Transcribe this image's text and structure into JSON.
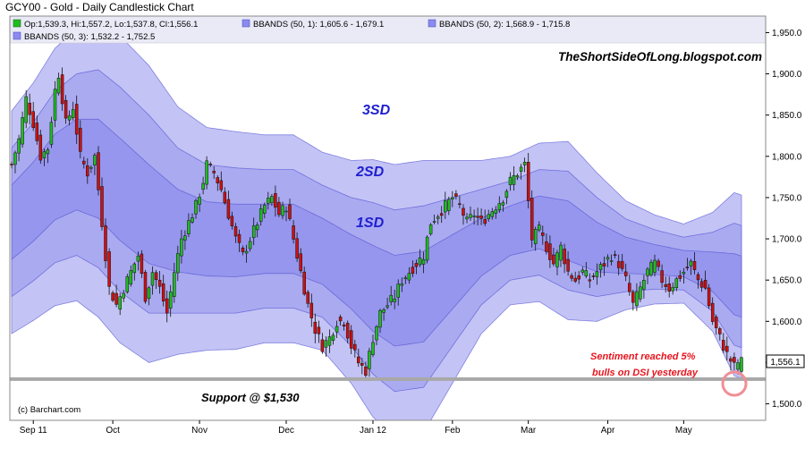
{
  "header": {
    "title": "GCY00 - Gold - Daily Candlestick Chart"
  },
  "legend": {
    "ohlc": "Op:1,539.3, Hi:1,557.2, Lo:1,537.8, Cl:1,556.1",
    "bb1": "BBANDS (50, 1): 1,605.6 - 1,679.1",
    "bb2": "BBANDS (50, 2): 1,568.9 - 1,715.8",
    "bb3": "BBANDS (50, 3): 1,532.2 - 1,752.5"
  },
  "watermark": "TheShortSideOfLong.blogspot.com",
  "copyright": "(c) Barchart.com",
  "annotations": {
    "band3": "3SD",
    "band2": "2SD",
    "band1": "1SD",
    "support": "Support @ $1,530",
    "sentiment_line1": "Sentiment reached 5%",
    "sentiment_line2": "bulls on DSI yesterday"
  },
  "price_tag": "1,556.1",
  "colors": {
    "up_candle": "#22bb22",
    "down_candle": "#cc1111",
    "band_fill": "#6f6fe8",
    "sentiment_text": "#e8141e",
    "band_label": "#1f1fd0",
    "support_line": "#a8a8a8",
    "circle": "#f08e95"
  },
  "chart_data": {
    "type": "candlestick",
    "title": "GCY00 - Gold - Daily Candlestick Chart",
    "ylim": [
      1480,
      1970
    ],
    "y_ticks": [
      "1,500.0",
      "1,550.0",
      "1,600.0",
      "1,650.0",
      "1,700.0",
      "1,750.0",
      "1,800.0",
      "1,850.0",
      "1,900.0",
      "1,950.0"
    ],
    "y_tick_values": [
      1500,
      1550,
      1600,
      1650,
      1700,
      1750,
      1800,
      1850,
      1900,
      1950
    ],
    "x_ticks": [
      "Sep 11",
      "Oct",
      "Nov",
      "Dec",
      "Jan 12",
      "Feb",
      "Mar",
      "Apr",
      "May"
    ],
    "x_tick_index": [
      6,
      28,
      52,
      76,
      100,
      122,
      143,
      165,
      186
    ],
    "n_days": 203,
    "close_anchors": [
      [
        0,
        1790
      ],
      [
        2,
        1820
      ],
      [
        4,
        1870
      ],
      [
        6,
        1840
      ],
      [
        8,
        1800
      ],
      [
        10,
        1810
      ],
      [
        12,
        1880
      ],
      [
        13,
        1900
      ],
      [
        15,
        1840
      ],
      [
        17,
        1860
      ],
      [
        19,
        1800
      ],
      [
        21,
        1780
      ],
      [
        23,
        1800
      ],
      [
        25,
        1720
      ],
      [
        27,
        1640
      ],
      [
        29,
        1620
      ],
      [
        31,
        1640
      ],
      [
        33,
        1660
      ],
      [
        35,
        1680
      ],
      [
        37,
        1630
      ],
      [
        39,
        1660
      ],
      [
        41,
        1640
      ],
      [
        43,
        1610
      ],
      [
        45,
        1660
      ],
      [
        47,
        1700
      ],
      [
        49,
        1720
      ],
      [
        51,
        1740
      ],
      [
        53,
        1770
      ],
      [
        54,
        1790
      ],
      [
        56,
        1780
      ],
      [
        58,
        1760
      ],
      [
        60,
        1730
      ],
      [
        62,
        1700
      ],
      [
        64,
        1680
      ],
      [
        66,
        1700
      ],
      [
        68,
        1720
      ],
      [
        70,
        1740
      ],
      [
        72,
        1750
      ],
      [
        74,
        1730
      ],
      [
        76,
        1740
      ],
      [
        78,
        1700
      ],
      [
        80,
        1660
      ],
      [
        82,
        1620
      ],
      [
        84,
        1590
      ],
      [
        86,
        1570
      ],
      [
        88,
        1580
      ],
      [
        90,
        1600
      ],
      [
        92,
        1600
      ],
      [
        94,
        1570
      ],
      [
        96,
        1550
      ],
      [
        98,
        1540
      ],
      [
        100,
        1580
      ],
      [
        102,
        1610
      ],
      [
        104,
        1620
      ],
      [
        106,
        1630
      ],
      [
        108,
        1650
      ],
      [
        110,
        1660
      ],
      [
        112,
        1670
      ],
      [
        114,
        1680
      ],
      [
        116,
        1720
      ],
      [
        118,
        1730
      ],
      [
        120,
        1740
      ],
      [
        122,
        1750
      ],
      [
        124,
        1740
      ],
      [
        126,
        1720
      ],
      [
        128,
        1730
      ],
      [
        130,
        1720
      ],
      [
        132,
        1730
      ],
      [
        134,
        1740
      ],
      [
        136,
        1750
      ],
      [
        138,
        1770
      ],
      [
        140,
        1780
      ],
      [
        142,
        1790
      ],
      [
        144,
        1700
      ],
      [
        146,
        1710
      ],
      [
        148,
        1690
      ],
      [
        150,
        1670
      ],
      [
        152,
        1690
      ],
      [
        154,
        1660
      ],
      [
        156,
        1650
      ],
      [
        158,
        1660
      ],
      [
        160,
        1650
      ],
      [
        162,
        1660
      ],
      [
        164,
        1670
      ],
      [
        166,
        1680
      ],
      [
        168,
        1670
      ],
      [
        170,
        1650
      ],
      [
        172,
        1620
      ],
      [
        174,
        1640
      ],
      [
        176,
        1660
      ],
      [
        178,
        1670
      ],
      [
        180,
        1650
      ],
      [
        182,
        1640
      ],
      [
        184,
        1650
      ],
      [
        186,
        1660
      ],
      [
        188,
        1670
      ],
      [
        190,
        1650
      ],
      [
        192,
        1640
      ],
      [
        194,
        1600
      ],
      [
        196,
        1580
      ],
      [
        198,
        1560
      ],
      [
        200,
        1545
      ],
      [
        202,
        1556
      ]
    ],
    "last_candle": {
      "open": 1539.3,
      "high": 1557.2,
      "low": 1537.8,
      "close": 1556.1
    },
    "bollinger": {
      "period": 50,
      "x_index": [
        0,
        6,
        12,
        18,
        24,
        30,
        38,
        46,
        54,
        62,
        70,
        78,
        86,
        94,
        100,
        106,
        114,
        122,
        130,
        138,
        146,
        154,
        162,
        170,
        178,
        186,
        194,
        200,
        202
      ],
      "sma": [
        1720,
        1745,
        1775,
        1790,
        1785,
        1760,
        1730,
        1710,
        1700,
        1698,
        1700,
        1700,
        1685,
        1660,
        1640,
        1625,
        1630,
        1660,
        1690,
        1710,
        1720,
        1710,
        1690,
        1680,
        1675,
        1670,
        1660,
        1645,
        1642
      ],
      "sd": [
        45,
        48,
        52,
        55,
        60,
        62,
        60,
        50,
        45,
        44,
        42,
        42,
        40,
        45,
        52,
        55,
        55,
        45,
        35,
        30,
        32,
        36,
        30,
        22,
        18,
        16,
        24,
        37,
        37
      ]
    },
    "support_level": 1530,
    "bands": [
      {
        "name": "BBANDS (50, 1)",
        "lower": 1605.6,
        "upper": 1679.1
      },
      {
        "name": "BBANDS (50, 2)",
        "lower": 1568.9,
        "upper": 1715.8
      },
      {
        "name": "BBANDS (50, 3)",
        "lower": 1532.2,
        "upper": 1752.5
      }
    ]
  }
}
